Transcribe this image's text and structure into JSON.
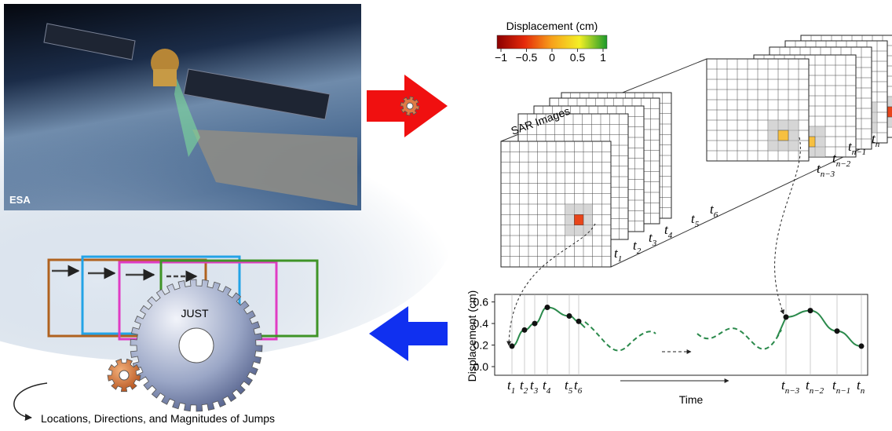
{
  "satellite": {
    "credit": "ESA"
  },
  "colorbar": {
    "title": "Displacement (cm)",
    "ticks": [
      {
        "value": -1,
        "label": "−1"
      },
      {
        "value": -0.5,
        "label": "−0.5"
      },
      0,
      0.5,
      1
    ]
  },
  "stack": {
    "label": "SAR Images",
    "times": [
      {
        "symbol": "t",
        "index": "1"
      },
      {
        "symbol": "t",
        "index": "2"
      },
      {
        "symbol": "t",
        "index": "3"
      },
      {
        "symbol": "t",
        "index": "4"
      },
      {
        "symbol": "t",
        "index": "5"
      },
      {
        "symbol": "t",
        "index": "6"
      },
      {
        "symbol": "t",
        "index": "n−3"
      },
      {
        "symbol": "t",
        "index": "n−2"
      },
      {
        "symbol": "t",
        "index": "n−1"
      },
      {
        "symbol": "t",
        "index": "n"
      }
    ]
  },
  "plot": {
    "y_label": "Displacement (cm)",
    "x_label": "Time",
    "ylim": [
      -0.08,
      0.67
    ],
    "yticks": [
      {
        "value": 0,
        "label": "0.0"
      },
      {
        "value": 0.2,
        "label": "0.2"
      },
      {
        "value": 0.4,
        "label": "0.4"
      },
      {
        "value": 0.6,
        "label": "0.6"
      }
    ],
    "times": [
      {
        "symbol": "t",
        "index": "1"
      },
      {
        "symbol": "t",
        "index": "2"
      },
      {
        "symbol": "t",
        "index": "3"
      },
      {
        "symbol": "t",
        "index": "4"
      },
      {
        "symbol": "t",
        "index": "5"
      },
      {
        "symbol": "t",
        "index": "6"
      },
      {
        "symbol": "t",
        "index": "n−3"
      },
      {
        "symbol": "t",
        "index": "n−2"
      },
      {
        "symbol": "t",
        "index": "n−1"
      },
      {
        "symbol": "t",
        "index": "n"
      }
    ],
    "values": [
      0.19,
      0.34,
      0.4,
      0.55,
      0.47,
      0.42,
      0.46,
      0.52,
      0.33,
      0.19
    ]
  },
  "method": {
    "name": "JUST",
    "output": "Locations, Directions, and Magnitudes of Jumps"
  }
}
